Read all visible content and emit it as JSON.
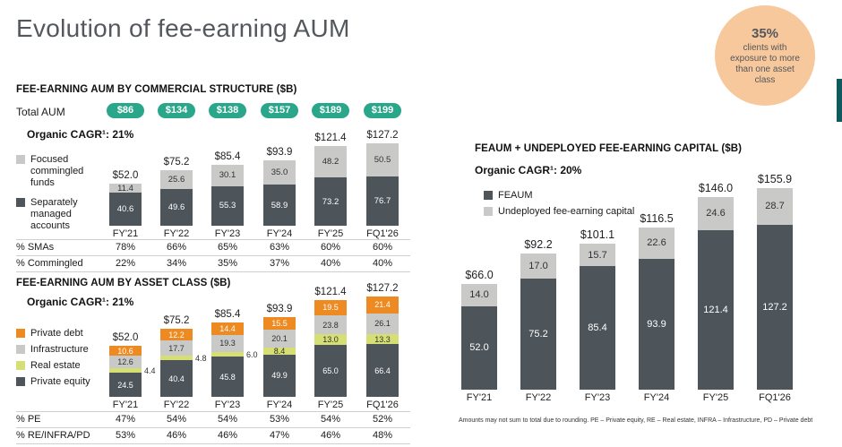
{
  "title": "Evolution of fee-earning AUM",
  "badge": {
    "value": "35%",
    "text": "clients with exposure to more than one asset class"
  },
  "colors": {
    "pill_teal": "#2aa78a",
    "peach": "#f8c89d",
    "edge_stripe": "#0f5a5e",
    "dark_slate": "#4d545a",
    "light_gray": "#c9cac8",
    "orange": "#ee8a22",
    "light_green": "#d6df73"
  },
  "sections": {
    "structure": {
      "header": "FEE-EARNING AUM BY COMMERCIAL STRUCTURE ($B)",
      "total_aum_label": "Total AUM",
      "pills": [
        "$86",
        "$134",
        "$138",
        "$157",
        "$189",
        "$199"
      ],
      "cagr": "Organic CAGR¹: 21%",
      "table": [
        {
          "label": "% SMAs",
          "values": [
            "78%",
            "66%",
            "65%",
            "63%",
            "60%",
            "60%"
          ]
        },
        {
          "label": "% Commingled",
          "values": [
            "22%",
            "34%",
            "35%",
            "37%",
            "40%",
            "40%"
          ]
        }
      ]
    },
    "asset_class": {
      "header": "FEE-EARNING AUM BY ASSET CLASS ($B)",
      "cagr": "Organic CAGR¹: 21%",
      "table": [
        {
          "label": "% PE",
          "values": [
            "47%",
            "54%",
            "54%",
            "53%",
            "54%",
            "52%"
          ]
        },
        {
          "label": "% RE/INFRA/PD",
          "values": [
            "53%",
            "46%",
            "46%",
            "47%",
            "46%",
            "48%"
          ]
        }
      ]
    },
    "feaum": {
      "header": "FEAUM + UNDEPLOYED FEE-EARNING CAPITAL ($B)",
      "cagr": "Organic CAGR¹: 20%",
      "footnote": "Amounts may not sum to total due to rounding. PE – Private equity, RE – Real estate, INFRA – Infrastructure, PD – Private debt"
    }
  },
  "chart_data": [
    {
      "id": "structure",
      "type": "bar",
      "stacked": true,
      "title": "FEE-EARNING AUM BY COMMERCIAL STRUCTURE ($B)",
      "categories": [
        "FY'21",
        "FY'22",
        "FY'23",
        "FY'24",
        "FY'25",
        "FQ1'26"
      ],
      "totals": [
        52.0,
        75.2,
        85.4,
        93.9,
        121.4,
        127.2
      ],
      "series": [
        {
          "name": "Focused commingled funds",
          "color": "#c9cac8",
          "label_color": "#2d3134",
          "values": [
            11.4,
            25.6,
            30.1,
            35.0,
            48.2,
            50.5
          ]
        },
        {
          "name": "Separately managed accounts",
          "color": "#4d545a",
          "label_color": "#ffffff",
          "values": [
            40.6,
            49.6,
            55.3,
            58.9,
            73.2,
            76.7
          ]
        }
      ],
      "legend_position": "left"
    },
    {
      "id": "asset_class",
      "type": "bar",
      "stacked": true,
      "title": "FEE-EARNING AUM BY ASSET CLASS ($B)",
      "categories": [
        "FY'21",
        "FY'22",
        "FY'23",
        "FY'24",
        "FY'25",
        "FQ1'26"
      ],
      "totals": [
        52.0,
        75.2,
        85.4,
        93.9,
        121.4,
        127.2
      ],
      "series": [
        {
          "name": "Private debt",
          "color": "#ee8a22",
          "label_color": "#ffffff",
          "values": [
            10.6,
            12.2,
            14.4,
            15.5,
            19.5,
            21.4
          ]
        },
        {
          "name": "Infrastructure",
          "color": "#c9cac8",
          "label_color": "#2d3134",
          "values": [
            12.6,
            17.7,
            19.3,
            20.1,
            23.8,
            26.1
          ]
        },
        {
          "name": "Real estate",
          "color": "#d6df73",
          "label_color": "#2d3134",
          "values": [
            4.4,
            4.8,
            6.0,
            8.4,
            13.0,
            13.3
          ]
        },
        {
          "name": "Private equity",
          "color": "#4d545a",
          "label_color": "#ffffff",
          "values": [
            24.5,
            40.4,
            45.8,
            49.9,
            65.0,
            66.4
          ]
        }
      ],
      "legend_position": "left"
    },
    {
      "id": "feaum",
      "type": "bar",
      "stacked": true,
      "title": "FEAUM + UNDEPLOYED FEE-EARNING CAPITAL ($B)",
      "categories": [
        "FY'21",
        "FY'22",
        "FY'23",
        "FY'24",
        "FY'25",
        "FQ1'26"
      ],
      "totals": [
        66.0,
        92.2,
        101.1,
        116.5,
        146.0,
        155.9
      ],
      "series": [
        {
          "name": "Undeployed fee-earning capital",
          "color": "#c9cac8",
          "label_color": "#2d3134",
          "values": [
            14.0,
            17.0,
            15.7,
            22.6,
            24.6,
            28.7
          ]
        },
        {
          "name": "FEAUM",
          "color": "#4d545a",
          "label_color": "#ffffff",
          "values": [
            52.0,
            75.2,
            85.4,
            93.9,
            121.4,
            127.2
          ]
        }
      ],
      "legend_order": [
        1,
        0
      ],
      "legend_position": "left"
    }
  ]
}
